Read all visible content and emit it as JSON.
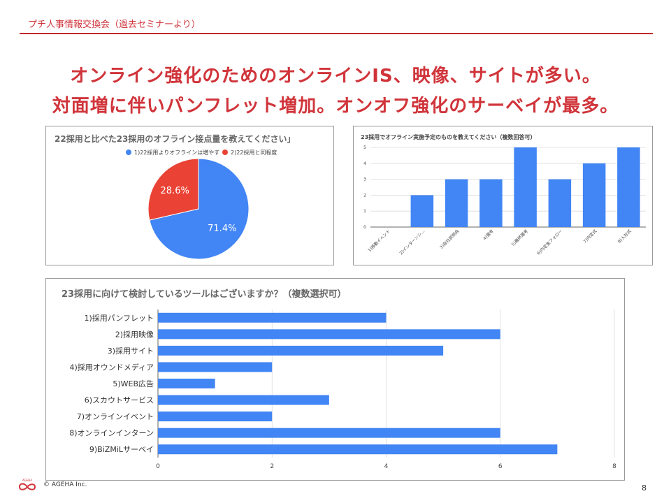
{
  "header": {
    "title": "プチ人事情報交換会（過去セミナーより）"
  },
  "headline": {
    "line1": "オンライン強化のためのオンラインIS、映像、サイトが多い。",
    "line2": "対面増に伴いパンフレット増加。オンオフ強化のサーベイが最多。"
  },
  "footer": {
    "copyright": "© AGEHA Inc.",
    "page": "8",
    "logo_text": "AGEHA"
  },
  "chart_data": [
    {
      "type": "pie",
      "title": "22採用と比べた23採用のオフライン接点量を教えてください」",
      "labels": [
        "1)22採用よりオフラインは増やす",
        "2)22採用と同程度"
      ],
      "values": [
        71.4,
        28.6
      ],
      "value_labels": [
        "71.4%",
        "28.6%"
      ],
      "colors": [
        "#4285f4",
        "#ea4335"
      ],
      "legend": "top"
    },
    {
      "type": "bar",
      "title": "23採用でオフライン実施予定のものを教えてください（複数回答可）",
      "categories": [
        "1)移動イベント",
        "2)インターンシ…",
        "3)自社説明会",
        "4)選考",
        "5)最終選考",
        "6)内定後フォロー",
        "7)内定式",
        "8)入社式"
      ],
      "values": [
        0,
        2,
        3,
        3,
        5,
        3,
        4,
        5
      ],
      "ylim": [
        0,
        5
      ],
      "yticks": [
        0,
        1,
        2,
        3,
        4,
        5
      ],
      "color": "#4285f4",
      "grid": true
    },
    {
      "type": "bar",
      "orientation": "horizontal",
      "title": "23採用に向けて検討しているツールはございますか？（複数選択可）",
      "categories": [
        "1)採用パンフレット",
        "2)採用映像",
        "3)採用サイト",
        "4)採用オウンドメディア",
        "5)WEB広告",
        "6)スカウトサービス",
        "7)オンラインイベント",
        "8)オンラインインターン",
        "9)BiZMiLサーベイ"
      ],
      "values": [
        4,
        6,
        5,
        2,
        1,
        3,
        2,
        6,
        7
      ],
      "xlim": [
        0,
        8
      ],
      "xticks": [
        0,
        2,
        4,
        6,
        8
      ],
      "color": "#4285f4",
      "grid": true
    }
  ]
}
